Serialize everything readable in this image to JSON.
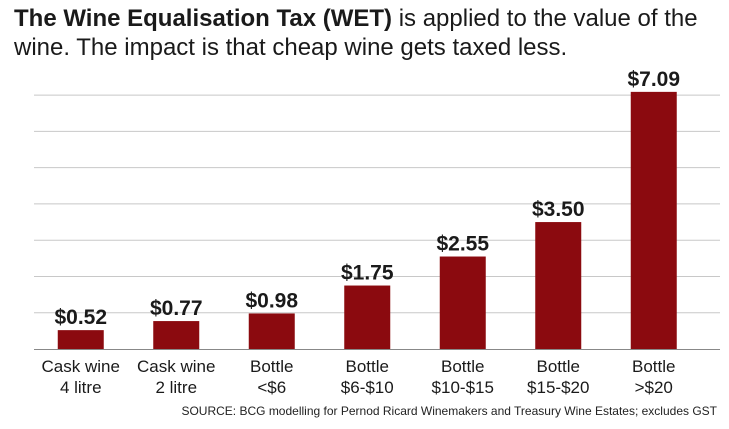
{
  "header": {
    "title_bold": "The Wine Equalisation Tax (WET)",
    "title_rest": " is applied to the value of the wine. The impact is that cheap wine gets taxed less."
  },
  "source": "SOURCE: BCG modelling for Pernod Ricard Winemakers and Treasury Wine Estates; excludes GST",
  "colors": {
    "bar": "#8b0a0f",
    "grid": "#c8c8c8",
    "axis": "#888888",
    "text": "#1a1a1a"
  },
  "chart_data": {
    "type": "bar",
    "categories": [
      [
        "Cask wine",
        "4 litre"
      ],
      [
        "Cask wine",
        "2 litre"
      ],
      [
        "Bottle",
        "<$6"
      ],
      [
        "Bottle",
        "$6-$10"
      ],
      [
        "Bottle",
        "$10-$15"
      ],
      [
        "Bottle",
        "$15-$20"
      ],
      [
        "Bottle",
        ">$20"
      ]
    ],
    "values": [
      0.52,
      0.77,
      0.98,
      1.75,
      2.55,
      3.5,
      7.09
    ],
    "data_labels": [
      "$0.52",
      "$0.77",
      "$0.98",
      "$1.75",
      "$2.55",
      "$3.50",
      "$7.09"
    ],
    "ylim": [
      0,
      7.5
    ],
    "grid": true,
    "grid_step": 1,
    "title": "The Wine Equalisation Tax (WET) is applied to the value of the wine. The impact is that cheap wine gets taxed less."
  }
}
